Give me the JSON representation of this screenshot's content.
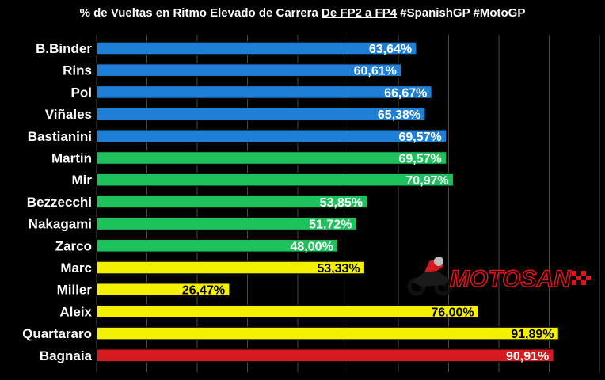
{
  "title": {
    "prefix": "% de Vueltas en Ritmo Elevado de Carrera",
    "underlined": "De FP2 a FP4",
    "suffix": "#SpanishGP #MotoGP"
  },
  "logo": {
    "text": "MOTOSAN",
    "icon": "motorcycle-rider-icon"
  },
  "colors": {
    "background": "#000000",
    "grid": "#4a4a4a",
    "blue": "#1e7fd6",
    "green": "#1ec25c",
    "yellow": "#f3f000",
    "red": "#d71920",
    "logo_red": "#e3131b"
  },
  "chart_data": {
    "type": "bar",
    "orientation": "horizontal",
    "title": "% de Vueltas en Ritmo Elevado de Carrera De FP2 a FP4 #SpanishGP #MotoGP",
    "xlim": [
      0,
      100
    ],
    "grid": true,
    "categories": [
      "B.Binder",
      "Rins",
      "Pol",
      "Viñales",
      "Bastianini",
      "Martin",
      "Mir",
      "Bezzecchi",
      "Nakagami",
      "Zarco",
      "Marc",
      "Miller",
      "Aleix",
      "Quartararo",
      "Bagnaia"
    ],
    "values": [
      63.64,
      60.61,
      66.67,
      65.38,
      69.57,
      69.57,
      70.97,
      53.85,
      51.72,
      48.0,
      53.33,
      26.47,
      76.0,
      91.89,
      90.91
    ],
    "labels": [
      "63,64%",
      "60,61%",
      "66,67%",
      "65,38%",
      "69,57%",
      "69,57%",
      "70,97%",
      "53,85%",
      "51,72%",
      "48,00%",
      "53,33%",
      "26,47%",
      "76,00%",
      "91,89%",
      "90,91%"
    ],
    "bar_colors": [
      "blue",
      "blue",
      "blue",
      "blue",
      "blue",
      "green",
      "green",
      "green",
      "green",
      "green",
      "yellow",
      "yellow",
      "yellow",
      "yellow",
      "red"
    ]
  }
}
